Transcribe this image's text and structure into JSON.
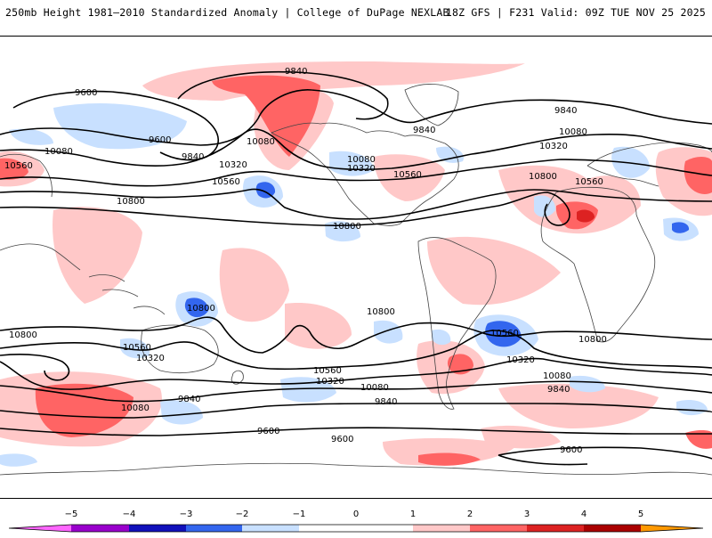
{
  "header": {
    "left": "250mb Height 1981–2010 Standardized Anomaly | College of DuPage NEXLAB",
    "right": "18Z GFS | F231 Valid: 09Z TUE NOV 25 2025"
  },
  "colors": {
    "neg5": "#ff66ff",
    "neg4": "#9900cc",
    "neg3": "#1111bb",
    "neg2": "#3366ee",
    "neg1": "#c8e0ff",
    "zero": "#ffffff",
    "pos1": "#ffc8c8",
    "pos2": "#ff6464",
    "pos3": "#dd2222",
    "pos4": "#aa0000",
    "pos5": "#ff9900"
  },
  "contour_labels": [
    {
      "text": "9840"
    },
    {
      "text": "9600"
    },
    {
      "text": "9600"
    },
    {
      "text": "10080"
    },
    {
      "text": "10080"
    },
    {
      "text": "9840"
    },
    {
      "text": "10320"
    },
    {
      "text": "10560"
    },
    {
      "text": "10560"
    },
    {
      "text": "10800"
    },
    {
      "text": "10080"
    },
    {
      "text": "10320"
    },
    {
      "text": "10560"
    },
    {
      "text": "9840"
    },
    {
      "text": "9840"
    },
    {
      "text": "10080"
    },
    {
      "text": "10320"
    },
    {
      "text": "10800"
    },
    {
      "text": "10560"
    },
    {
      "text": "10800"
    },
    {
      "text": "10800"
    },
    {
      "text": "10800"
    },
    {
      "text": "10800"
    },
    {
      "text": "10560"
    },
    {
      "text": "10320"
    },
    {
      "text": "10560"
    },
    {
      "text": "10320"
    },
    {
      "text": "10560"
    },
    {
      "text": "10800"
    },
    {
      "text": "10320"
    },
    {
      "text": "10080"
    },
    {
      "text": "10080"
    },
    {
      "text": "9840"
    },
    {
      "text": "9840"
    },
    {
      "text": "10080"
    },
    {
      "text": "9840"
    },
    {
      "text": "9600"
    },
    {
      "text": "9600"
    },
    {
      "text": "9600"
    }
  ],
  "colorbar": {
    "ticks": [
      "−5",
      "−4",
      "−3",
      "−2",
      "−1",
      "0",
      "1",
      "2",
      "3",
      "4",
      "5"
    ]
  }
}
